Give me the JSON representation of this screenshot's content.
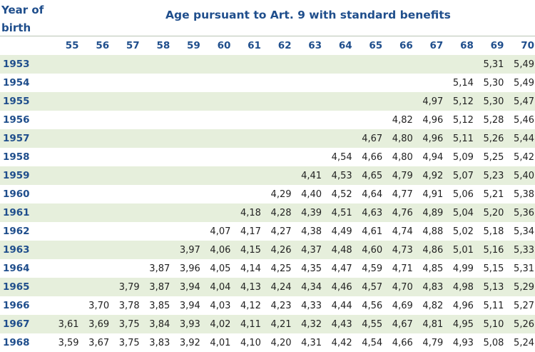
{
  "header": {
    "year_label": "Year of birth",
    "title": "Age pursuant to Art. 9 with standard benefits"
  },
  "table": {
    "ages": [
      "55",
      "56",
      "57",
      "58",
      "59",
      "60",
      "61",
      "62",
      "63",
      "64",
      "65",
      "66",
      "67",
      "68",
      "69",
      "70"
    ],
    "rows": [
      {
        "year": "1953",
        "values": [
          "",
          "",
          "",
          "",
          "",
          "",
          "",
          "",
          "",
          "",
          "",
          "",
          "",
          "",
          "5,31",
          "5,49"
        ]
      },
      {
        "year": "1954",
        "values": [
          "",
          "",
          "",
          "",
          "",
          "",
          "",
          "",
          "",
          "",
          "",
          "",
          "",
          "5,14",
          "5,30",
          "5,49"
        ]
      },
      {
        "year": "1955",
        "values": [
          "",
          "",
          "",
          "",
          "",
          "",
          "",
          "",
          "",
          "",
          "",
          "",
          "4,97",
          "5,12",
          "5,30",
          "5,47"
        ]
      },
      {
        "year": "1956",
        "values": [
          "",
          "",
          "",
          "",
          "",
          "",
          "",
          "",
          "",
          "",
          "",
          "4,82",
          "4,96",
          "5,12",
          "5,28",
          "5,46"
        ]
      },
      {
        "year": "1957",
        "values": [
          "",
          "",
          "",
          "",
          "",
          "",
          "",
          "",
          "",
          "",
          "4,67",
          "4,80",
          "4,96",
          "5,11",
          "5,26",
          "5,44"
        ]
      },
      {
        "year": "1958",
        "values": [
          "",
          "",
          "",
          "",
          "",
          "",
          "",
          "",
          "",
          "4,54",
          "4,66",
          "4,80",
          "4,94",
          "5,09",
          "5,25",
          "5,42"
        ]
      },
      {
        "year": "1959",
        "values": [
          "",
          "",
          "",
          "",
          "",
          "",
          "",
          "",
          "4,41",
          "4,53",
          "4,65",
          "4,79",
          "4,92",
          "5,07",
          "5,23",
          "5,40"
        ]
      },
      {
        "year": "1960",
        "values": [
          "",
          "",
          "",
          "",
          "",
          "",
          "",
          "4,29",
          "4,40",
          "4,52",
          "4,64",
          "4,77",
          "4,91",
          "5,06",
          "5,21",
          "5,38"
        ]
      },
      {
        "year": "1961",
        "values": [
          "",
          "",
          "",
          "",
          "",
          "",
          "4,18",
          "4,28",
          "4,39",
          "4,51",
          "4,63",
          "4,76",
          "4,89",
          "5,04",
          "5,20",
          "5,36"
        ]
      },
      {
        "year": "1962",
        "values": [
          "",
          "",
          "",
          "",
          "",
          "4,07",
          "4,17",
          "4,27",
          "4,38",
          "4,49",
          "4,61",
          "4,74",
          "4,88",
          "5,02",
          "5,18",
          "5,34"
        ]
      },
      {
        "year": "1963",
        "values": [
          "",
          "",
          "",
          "",
          "3,97",
          "4,06",
          "4,15",
          "4,26",
          "4,37",
          "4,48",
          "4,60",
          "4,73",
          "4,86",
          "5,01",
          "5,16",
          "5,33"
        ]
      },
      {
        "year": "1964",
        "values": [
          "",
          "",
          "",
          "3,87",
          "3,96",
          "4,05",
          "4,14",
          "4,25",
          "4,35",
          "4,47",
          "4,59",
          "4,71",
          "4,85",
          "4,99",
          "5,15",
          "5,31"
        ]
      },
      {
        "year": "1965",
        "values": [
          "",
          "",
          "3,79",
          "3,87",
          "3,94",
          "4,04",
          "4,13",
          "4,24",
          "4,34",
          "4,46",
          "4,57",
          "4,70",
          "4,83",
          "4,98",
          "5,13",
          "5,29"
        ]
      },
      {
        "year": "1966",
        "values": [
          "",
          "3,70",
          "3,78",
          "3,85",
          "3,94",
          "4,03",
          "4,12",
          "4,23",
          "4,33",
          "4,44",
          "4,56",
          "4,69",
          "4,82",
          "4,96",
          "5,11",
          "5,27"
        ]
      },
      {
        "year": "1967",
        "values": [
          "3,61",
          "3,69",
          "3,75",
          "3,84",
          "3,93",
          "4,02",
          "4,11",
          "4,21",
          "4,32",
          "4,43",
          "4,55",
          "4,67",
          "4,81",
          "4,95",
          "5,10",
          "5,26"
        ]
      },
      {
        "year": "1968",
        "values": [
          "3,59",
          "3,67",
          "3,75",
          "3,83",
          "3,92",
          "4,01",
          "4,10",
          "4,20",
          "4,31",
          "4,42",
          "4,54",
          "4,66",
          "4,79",
          "4,93",
          "5,08",
          "5,24"
        ]
      }
    ]
  }
}
